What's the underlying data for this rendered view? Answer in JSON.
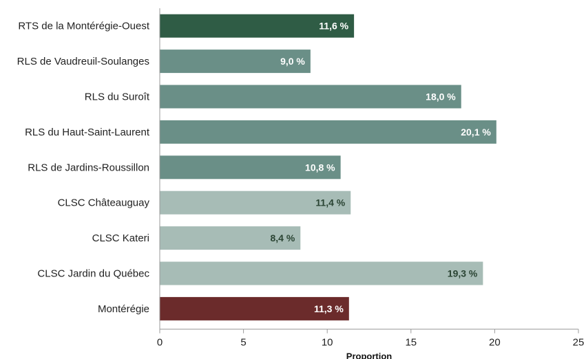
{
  "chart_data": {
    "type": "bar",
    "orientation": "horizontal",
    "categories": [
      "RTS de la Montérégie-Ouest",
      "RLS de Vaudreuil-Soulanges",
      "RLS du Suroît",
      "RLS du Haut-Saint-Laurent",
      "RLS de Jardins-Roussillon",
      "CLSC Châteauguay",
      "CLSC Kateri",
      "CLSC Jardin du Québec",
      "Montérégie"
    ],
    "values": [
      11.6,
      9.0,
      18.0,
      20.1,
      10.8,
      11.4,
      8.4,
      19.3,
      11.3
    ],
    "value_labels": [
      "11,6 %",
      "9,0 %",
      "18,0 %",
      "20,1 %",
      "10,8 %",
      "11,4 %",
      "8,4 %",
      "19,3 %",
      "11,3 %"
    ],
    "bar_colors": [
      "#2f5c45",
      "#6a8f87",
      "#6a8f87",
      "#6a8f87",
      "#6a8f87",
      "#a7bcb6",
      "#a7bcb6",
      "#a7bcb6",
      "#6b2b2b"
    ],
    "label_colors": [
      "#ffffff",
      "#ffffff",
      "#ffffff",
      "#ffffff",
      "#ffffff",
      "#2a4433",
      "#2a4433",
      "#2a4433",
      "#ffffff"
    ],
    "xlabel": "Proportion",
    "ylabel": "",
    "title": "",
    "xlim": [
      0,
      25
    ],
    "xticks": [
      0,
      5,
      10,
      15,
      20,
      25
    ],
    "grid": false,
    "legend": "none"
  }
}
